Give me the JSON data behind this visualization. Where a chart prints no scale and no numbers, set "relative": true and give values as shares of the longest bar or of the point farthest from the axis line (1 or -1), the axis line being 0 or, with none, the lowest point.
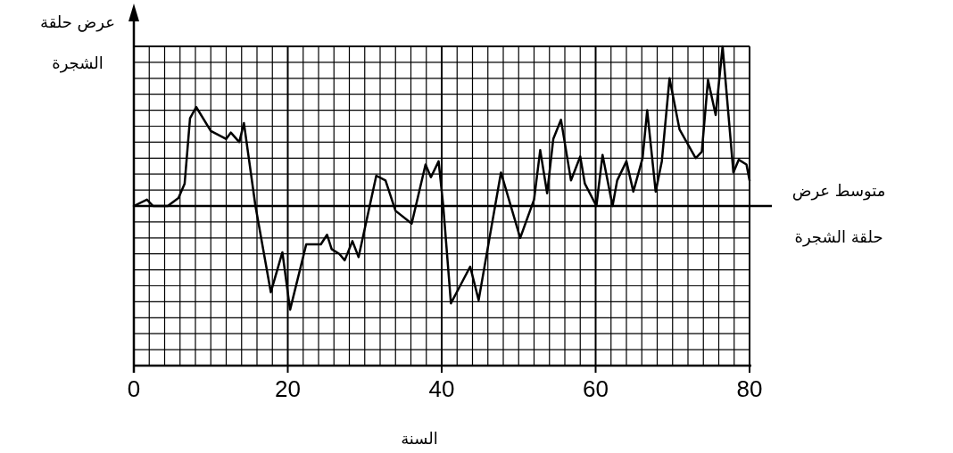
{
  "chart_data": {
    "type": "line",
    "relative": true,
    "xlabel": "السنة",
    "ylabel": "عرض حلقة الشجرة",
    "color": "#000000",
    "grid": true,
    "xlim": [
      0,
      80
    ],
    "xticks": [
      0,
      20,
      40,
      60,
      80
    ],
    "x": [
      0,
      1.7,
      2.5,
      4.4,
      5.8,
      6.6,
      7.3,
      8.1,
      10.0,
      12.0,
      12.6,
      13.7,
      14.3,
      15.8,
      17.8,
      19.3,
      20.3,
      22.4,
      24.3,
      25.1,
      25.7,
      26.7,
      27.4,
      28.4,
      29.2,
      31.5,
      32.7,
      34.0,
      36.1,
      37.9,
      38.6,
      39.6,
      40.2,
      41.2,
      43.7,
      44.8,
      47.7,
      50.2,
      52.0,
      52.8,
      53.7,
      54.5,
      55.5,
      56.8,
      58.0,
      58.6,
      60.1,
      60.9,
      62.2,
      62.8,
      64.0,
      64.9,
      66.1,
      66.7,
      67.8,
      68.6,
      69.6,
      70.9,
      73.0,
      73.8,
      74.6,
      75.6,
      76.5,
      77.9,
      78.6,
      79.6,
      80
    ],
    "values": [
      0.5,
      0.52,
      0.5,
      0.5,
      0.525,
      0.57,
      0.775,
      0.81,
      0.735,
      0.71,
      0.73,
      0.7,
      0.76,
      0.5,
      0.23,
      0.355,
      0.175,
      0.38,
      0.38,
      0.41,
      0.365,
      0.35,
      0.33,
      0.39,
      0.34,
      0.595,
      0.58,
      0.485,
      0.445,
      0.63,
      0.59,
      0.64,
      0.5,
      0.195,
      0.31,
      0.205,
      0.605,
      0.4,
      0.52,
      0.675,
      0.54,
      0.71,
      0.77,
      0.58,
      0.655,
      0.57,
      0.5,
      0.66,
      0.5,
      0.58,
      0.64,
      0.545,
      0.65,
      0.8,
      0.545,
      0.64,
      0.9,
      0.74,
      0.65,
      0.67,
      0.895,
      0.785,
      1,
      0.605,
      0.645,
      0.63,
      0.58
    ],
    "ref_lines": [
      {
        "axis": "y",
        "value": 0.5,
        "label": "متوسط عرض حلقة الشجرة"
      }
    ]
  }
}
